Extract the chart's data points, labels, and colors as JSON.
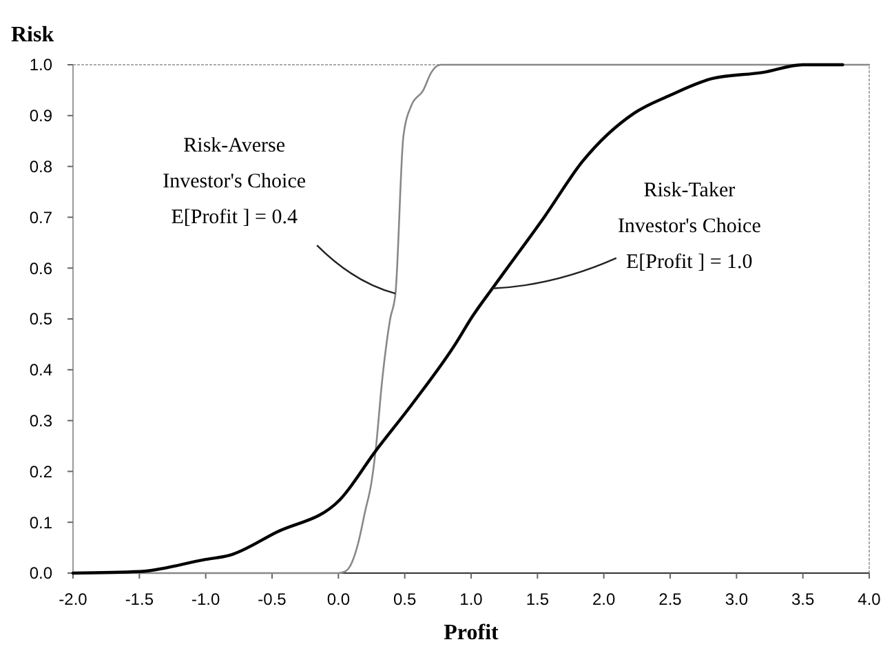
{
  "chart_data": {
    "type": "line",
    "xlabel": "Profit",
    "ylabel": "Risk",
    "xlim": [
      -2,
      4
    ],
    "ylim": [
      0,
      1
    ],
    "xticks": [
      {
        "value": -2,
        "label": "-2.0"
      },
      {
        "value": -1.5,
        "label": "-1.5"
      },
      {
        "value": -1,
        "label": "-1.0"
      },
      {
        "value": -0.5,
        "label": "-0.5"
      },
      {
        "value": 0,
        "label": "0.0"
      },
      {
        "value": 0.5,
        "label": "0.5"
      },
      {
        "value": 1,
        "label": "1.0"
      },
      {
        "value": 1.5,
        "label": "1.5"
      },
      {
        "value": 2,
        "label": "2.0"
      },
      {
        "value": 2.5,
        "label": "2.5"
      },
      {
        "value": 3,
        "label": "3.0"
      },
      {
        "value": 3.5,
        "label": "3.5"
      },
      {
        "value": 4,
        "label": "4.0"
      }
    ],
    "yticks": [
      {
        "value": 0,
        "label": "0.0"
      },
      {
        "value": 0.1,
        "label": "0.1"
      },
      {
        "value": 0.2,
        "label": "0.2"
      },
      {
        "value": 0.3,
        "label": "0.3"
      },
      {
        "value": 0.4,
        "label": "0.4"
      },
      {
        "value": 0.5,
        "label": "0.5"
      },
      {
        "value": 0.6,
        "label": "0.6"
      },
      {
        "value": 0.7,
        "label": "0.7"
      },
      {
        "value": 0.8,
        "label": "0.8"
      },
      {
        "value": 0.9,
        "label": "0.9"
      },
      {
        "value": 1,
        "label": "1.0"
      }
    ],
    "grid": false,
    "line_style": "solid",
    "series": [
      {
        "color": "#888888",
        "x": [
          -2,
          -1,
          0,
          0.05,
          0.1,
          0.15,
          0.2,
          0.25,
          0.28,
          0.33,
          0.39,
          0.43,
          0.49,
          0.55,
          0.64,
          0.7,
          0.77,
          0.88,
          2,
          3,
          4
        ],
        "values": [
          0,
          0,
          0,
          0.003,
          0.02,
          0.06,
          0.12,
          0.18,
          0.24,
          0.38,
          0.5,
          0.55,
          0.86,
          0.92,
          0.95,
          0.985,
          1,
          1,
          1,
          1,
          1
        ]
      },
      {
        "color": "#000000",
        "x": [
          -2,
          -1.5,
          -1,
          -0.82,
          -0.47,
          0.01,
          0.28,
          0.56,
          0.88,
          1.01,
          1.16,
          1.3,
          1.55,
          1.84,
          2.23,
          2.5,
          2.82,
          3.2,
          3.5,
          3.8
        ],
        "values": [
          0,
          0.003,
          0.027,
          0.035,
          0.08,
          0.144,
          0.24,
          0.334,
          0.45,
          0.505,
          0.56,
          0.61,
          0.7,
          0.81,
          0.905,
          0.94,
          0.973,
          0.985,
          1,
          1
        ]
      }
    ],
    "annotations": [
      {
        "text": "Risk-Averse\nInvestor's Choice\nE[Profit ] = 0.4",
        "x": 0.43,
        "y": 0.55
      },
      {
        "text": "Risk-Taker\nInvestor's Choice\nE[Profit ] = 1.0",
        "x": 1.16,
        "y": 0.56
      }
    ]
  }
}
